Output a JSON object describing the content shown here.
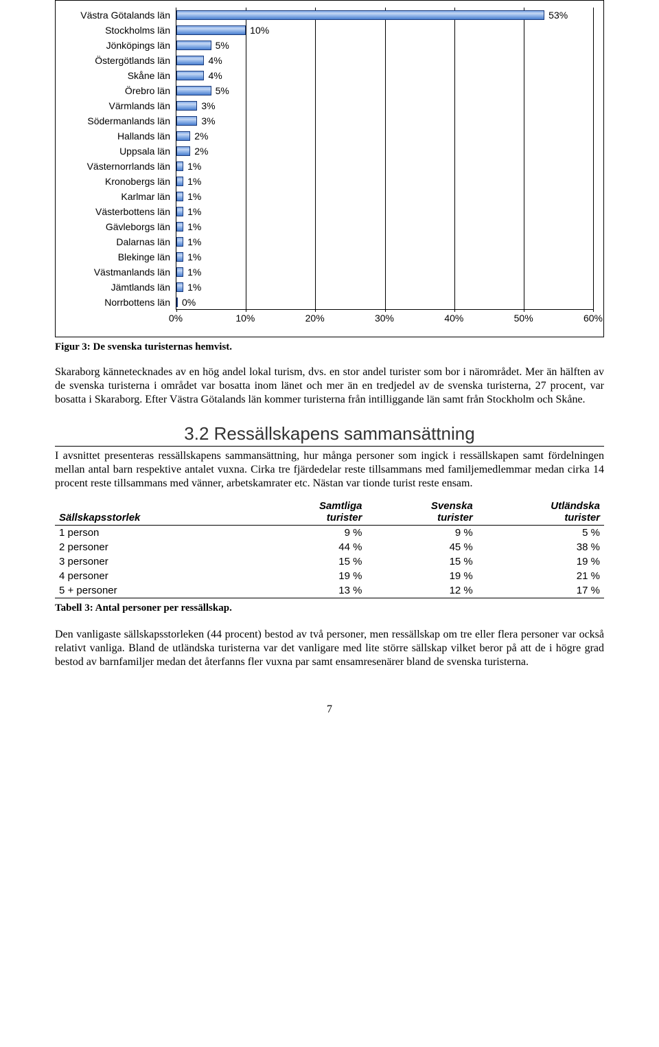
{
  "chart": {
    "type": "horizontal-bar",
    "xmax": 60,
    "xtick_step": 10,
    "xticks": [
      "0%",
      "10%",
      "20%",
      "30%",
      "40%",
      "50%",
      "60%"
    ],
    "bar_fill_top": "#9dbdec",
    "bar_fill_bottom": "#4a7fd0",
    "bar_border": "#1a3a7a",
    "grid_color": "#000000",
    "label_fontsize": 14,
    "value_fontsize": 14,
    "items": [
      {
        "label": "Västra Götalands län",
        "value": 53,
        "display": "53%"
      },
      {
        "label": "Stockholms län",
        "value": 10,
        "display": "10%"
      },
      {
        "label": "Jönköpings län",
        "value": 5,
        "display": "5%"
      },
      {
        "label": "Östergötlands län",
        "value": 4,
        "display": "4%"
      },
      {
        "label": "Skåne län",
        "value": 4,
        "display": "4%"
      },
      {
        "label": "Örebro län",
        "value": 5,
        "display": "5%"
      },
      {
        "label": "Värmlands län",
        "value": 3,
        "display": "3%"
      },
      {
        "label": "Södermanlands län",
        "value": 3,
        "display": "3%"
      },
      {
        "label": "Hallands län",
        "value": 2,
        "display": "2%"
      },
      {
        "label": "Uppsala län",
        "value": 2,
        "display": "2%"
      },
      {
        "label": "Västernorrlands län",
        "value": 1,
        "display": "1%"
      },
      {
        "label": "Kronobergs län",
        "value": 1,
        "display": "1%"
      },
      {
        "label": "Karlmar län",
        "value": 1,
        "display": "1%"
      },
      {
        "label": "Västerbottens län",
        "value": 1,
        "display": "1%"
      },
      {
        "label": "Gävleborgs län",
        "value": 1,
        "display": "1%"
      },
      {
        "label": "Dalarnas län",
        "value": 1,
        "display": "1%"
      },
      {
        "label": "Blekinge län",
        "value": 1,
        "display": "1%"
      },
      {
        "label": "Västmanlands län",
        "value": 1,
        "display": "1%"
      },
      {
        "label": "Jämtlands län",
        "value": 1,
        "display": "1%"
      },
      {
        "label": "Norrbottens län",
        "value": 0,
        "display": "0%"
      }
    ]
  },
  "figure_caption": "Figur 3: De svenska turisternas hemvist.",
  "para1": "Skaraborg kännetecknades av en hög andel lokal turism, dvs. en stor andel turister som bor i närområdet. Mer än hälften av de svenska turisterna i området var bosatta inom länet och mer än en tredjedel av de svenska turisterna, 27 procent, var bosatta i Skaraborg. Efter Västra Götalands län kommer turisterna från intilliggande län samt från Stockholm och Skåne.",
  "section_heading": "3.2 Ressällskapens sammansättning",
  "para2": "I avsnittet presenteras ressällskapens sammansättning, hur många personer som ingick i ressällskapen samt fördelningen mellan antal barn respektive antalet vuxna. Cirka tre fjärdedelar reste tillsammans med familjemedlemmar medan cirka 14 procent reste tillsammans med vänner, arbetskamrater etc. Nästan var tionde turist reste ensam.",
  "table": {
    "columns": [
      "Sällskapsstorlek",
      "Samtliga turister",
      "Svenska turister",
      "Utländska turister"
    ],
    "rows": [
      [
        "1 person",
        "9 %",
        "9 %",
        "5 %"
      ],
      [
        "2 personer",
        "44 %",
        "45 %",
        "38 %"
      ],
      [
        "3 personer",
        "15 %",
        "15 %",
        "19 %"
      ],
      [
        "4 personer",
        "19 %",
        "19 %",
        "21 %"
      ],
      [
        "5 + personer",
        "13 %",
        "12 %",
        "17 %"
      ]
    ]
  },
  "table_caption": "Tabell 3: Antal personer per ressällskap.",
  "para3": "Den vanligaste sällskapsstorleken (44 procent) bestod av två personer, men ressällskap om tre eller flera personer var också relativt vanliga. Bland de utländska turisterna var det vanligare med lite större sällskap vilket beror på att de i högre grad bestod av barnfamiljer medan det återfanns fler vuxna par samt ensamresenärer bland de svenska turisterna.",
  "page_number": "7"
}
